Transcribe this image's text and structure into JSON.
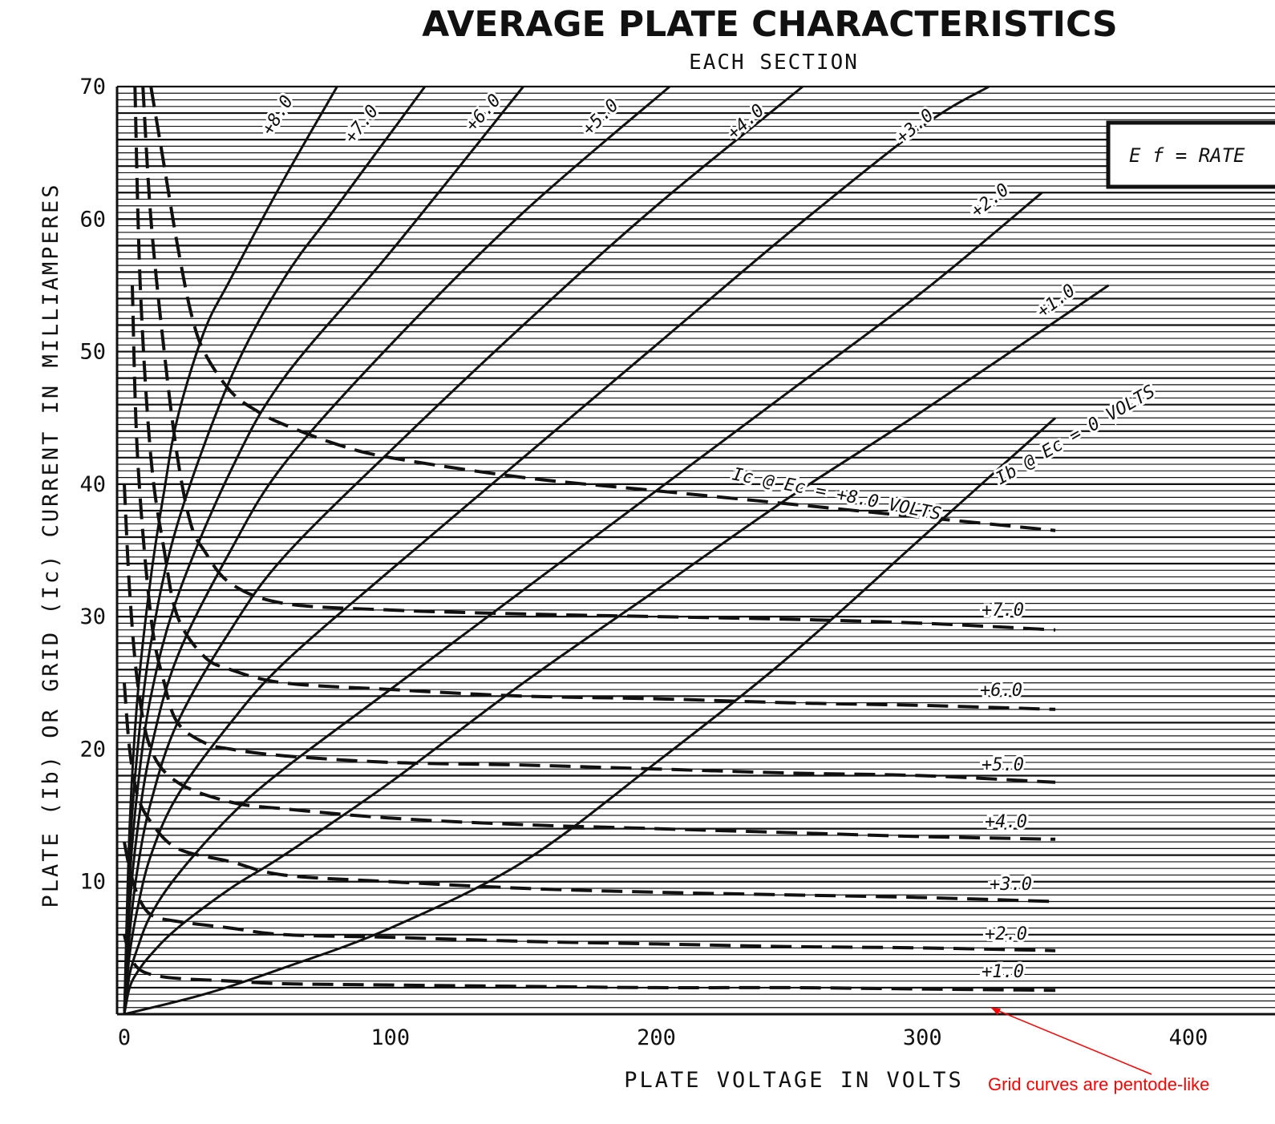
{
  "chart_data": {
    "type": "line",
    "title": "AVERAGE PLATE CHARACTERISTICS",
    "subtitle": "EACH SECTION",
    "xlabel": "PLATE VOLTAGE IN VOLTS",
    "ylabel": "PLATE (Ib) OR GRID (Ic) CURRENT IN MILLIAMPERES",
    "xlim": [
      0,
      400
    ],
    "ylim": [
      0,
      70
    ],
    "x_ticks": [
      "0",
      "100",
      "200",
      "300",
      "400"
    ],
    "y_ticks": [
      "10",
      "20",
      "30",
      "40",
      "50",
      "60",
      "70"
    ],
    "grid": true,
    "box_text": "E f  =  RATE",
    "plate_series": [
      {
        "name": "0",
        "style": "solid",
        "x": [
          0,
          30,
          60,
          100,
          150,
          200,
          250,
          300,
          350
        ],
        "y": [
          0,
          1.5,
          3.5,
          6.5,
          11.5,
          19,
          27,
          36,
          45
        ]
      },
      {
        "name": "+1.0",
        "style": "solid",
        "x": [
          0,
          2,
          5,
          10,
          20,
          40,
          60,
          100,
          150,
          200,
          250,
          300,
          370
        ],
        "y": [
          0,
          2,
          3.2,
          4.5,
          6.5,
          9.5,
          12,
          17.5,
          25,
          32,
          39,
          45.5,
          55
        ]
      },
      {
        "name": "+2.0",
        "style": "solid",
        "x": [
          0,
          2,
          5,
          10,
          20,
          40,
          60,
          100,
          150,
          200,
          250,
          300,
          345
        ],
        "y": [
          0,
          3,
          5,
          7.5,
          10.5,
          15,
          18.5,
          24.5,
          32,
          39.5,
          47,
          54.5,
          62
        ]
      },
      {
        "name": "+3.0",
        "style": "solid",
        "x": [
          0,
          2,
          5,
          10,
          20,
          40,
          60,
          100,
          150,
          200,
          250,
          300,
          325
        ],
        "y": [
          0,
          4.5,
          8,
          12,
          16.5,
          22,
          26.5,
          33.5,
          42,
          50.5,
          59,
          67,
          70
        ]
      },
      {
        "name": "+4.0",
        "style": "solid",
        "x": [
          0,
          2,
          5,
          10,
          20,
          40,
          60,
          100,
          150,
          200,
          255
        ],
        "y": [
          0,
          6,
          11,
          16,
          22,
          29,
          34.5,
          42.5,
          52,
          61,
          70
        ]
      },
      {
        "name": "+5.0",
        "style": "solid",
        "x": [
          0,
          2,
          5,
          10,
          20,
          40,
          60,
          100,
          150,
          205
        ],
        "y": [
          0,
          8,
          14,
          20,
          27,
          35,
          41.5,
          50.5,
          60.5,
          70
        ]
      },
      {
        "name": "+6.0",
        "style": "solid",
        "x": [
          0,
          2,
          5,
          10,
          20,
          40,
          60,
          100,
          150
        ],
        "y": [
          0,
          10,
          17,
          24,
          31.5,
          41,
          48,
          57.5,
          70
        ]
      },
      {
        "name": "+7.0",
        "style": "solid",
        "x": [
          0,
          2,
          5,
          10,
          20,
          40,
          60,
          80,
          113
        ],
        "y": [
          0,
          12,
          20,
          28,
          37,
          48,
          55.5,
          61,
          70
        ]
      },
      {
        "name": "+8.0",
        "style": "solid",
        "x": [
          0,
          2,
          5,
          10,
          15,
          20,
          30,
          40,
          60,
          80
        ],
        "y": [
          0,
          14,
          24,
          33,
          39.5,
          45,
          51.5,
          55.5,
          63,
          70
        ]
      }
    ],
    "grid_current_series": [
      {
        "name": "+1.0",
        "style": "dashed",
        "x": [
          0,
          2,
          5,
          10,
          20,
          40,
          60,
          100,
          150,
          200,
          250,
          300,
          350
        ],
        "y": [
          6,
          4.5,
          3.5,
          3,
          2.7,
          2.5,
          2.3,
          2.2,
          2.1,
          2,
          2,
          1.9,
          1.8
        ]
      },
      {
        "name": "+2.0",
        "style": "dashed",
        "x": [
          0,
          2,
          5,
          10,
          20,
          40,
          60,
          100,
          150,
          200,
          250,
          300,
          350
        ],
        "y": [
          13,
          11,
          9,
          7.5,
          7,
          6.5,
          6,
          5.8,
          5.5,
          5.3,
          5.1,
          5,
          4.8
        ]
      },
      {
        "name": "+3.0",
        "style": "dashed",
        "x": [
          0,
          2,
          5,
          10,
          20,
          40,
          60,
          100,
          150,
          200,
          250,
          300,
          350
        ],
        "y": [
          25,
          20,
          16.5,
          14.5,
          12.5,
          11.5,
          10.5,
          10,
          9.5,
          9.2,
          9,
          8.8,
          8.5
        ]
      },
      {
        "name": "+4.0",
        "style": "dashed",
        "x": [
          0,
          2,
          5,
          10,
          20,
          40,
          60,
          100,
          150,
          200,
          250,
          300,
          350
        ],
        "y": [
          40,
          32,
          25,
          20,
          17.5,
          16,
          15.5,
          14.8,
          14.3,
          14,
          13.7,
          13.4,
          13.2
        ]
      },
      {
        "name": "+5.0",
        "style": "dashed",
        "x": [
          3,
          5,
          10,
          15,
          20,
          30,
          40,
          60,
          100,
          150,
          200,
          250,
          300,
          350
        ],
        "y": [
          55,
          42,
          30,
          25,
          22,
          20.5,
          20,
          19.5,
          19,
          18.8,
          18.5,
          18.2,
          18,
          17.5
        ]
      },
      {
        "name": "+6.0",
        "style": "dashed",
        "x": [
          4,
          6,
          10,
          15,
          20,
          30,
          40,
          60,
          100,
          150,
          200,
          250,
          300,
          350
        ],
        "y": [
          70,
          55,
          42,
          35,
          30,
          27,
          26,
          25,
          24.5,
          24,
          23.8,
          23.5,
          23.3,
          23
        ]
      },
      {
        "name": "+7.0",
        "style": "dashed",
        "x": [
          7,
          10,
          15,
          20,
          25,
          30,
          40,
          60,
          100,
          150,
          200,
          250,
          300,
          350
        ],
        "y": [
          70,
          60,
          50,
          42,
          37,
          35,
          32.5,
          31,
          30.5,
          30.2,
          30,
          29.8,
          29.5,
          29
        ]
      },
      {
        "name": "+8.0",
        "style": "dashed",
        "x": [
          10,
          15,
          20,
          25,
          30,
          40,
          50,
          60,
          80,
          100,
          150,
          200,
          250,
          300,
          350
        ],
        "y": [
          70,
          64,
          58,
          53,
          50,
          47,
          45.5,
          44.5,
          43,
          42,
          40.5,
          39.5,
          38.5,
          37.5,
          36.5
        ]
      }
    ],
    "plate_labels": [
      "+8.0",
      "+7.0",
      "+6.0",
      "+5.0",
      "+4.0",
      "+3.0",
      "+2.0",
      "+1.0",
      "Ib @ Ec = 0 VOLTS"
    ],
    "grid_labels": [
      "Ic @ Ec = +8.0 VOLTS",
      "+7.0",
      "+6.0",
      "+5.0",
      "+4.0",
      "+3.0",
      "+2.0",
      "+1.0"
    ],
    "annotation": "Grid curves are pentode-like"
  }
}
